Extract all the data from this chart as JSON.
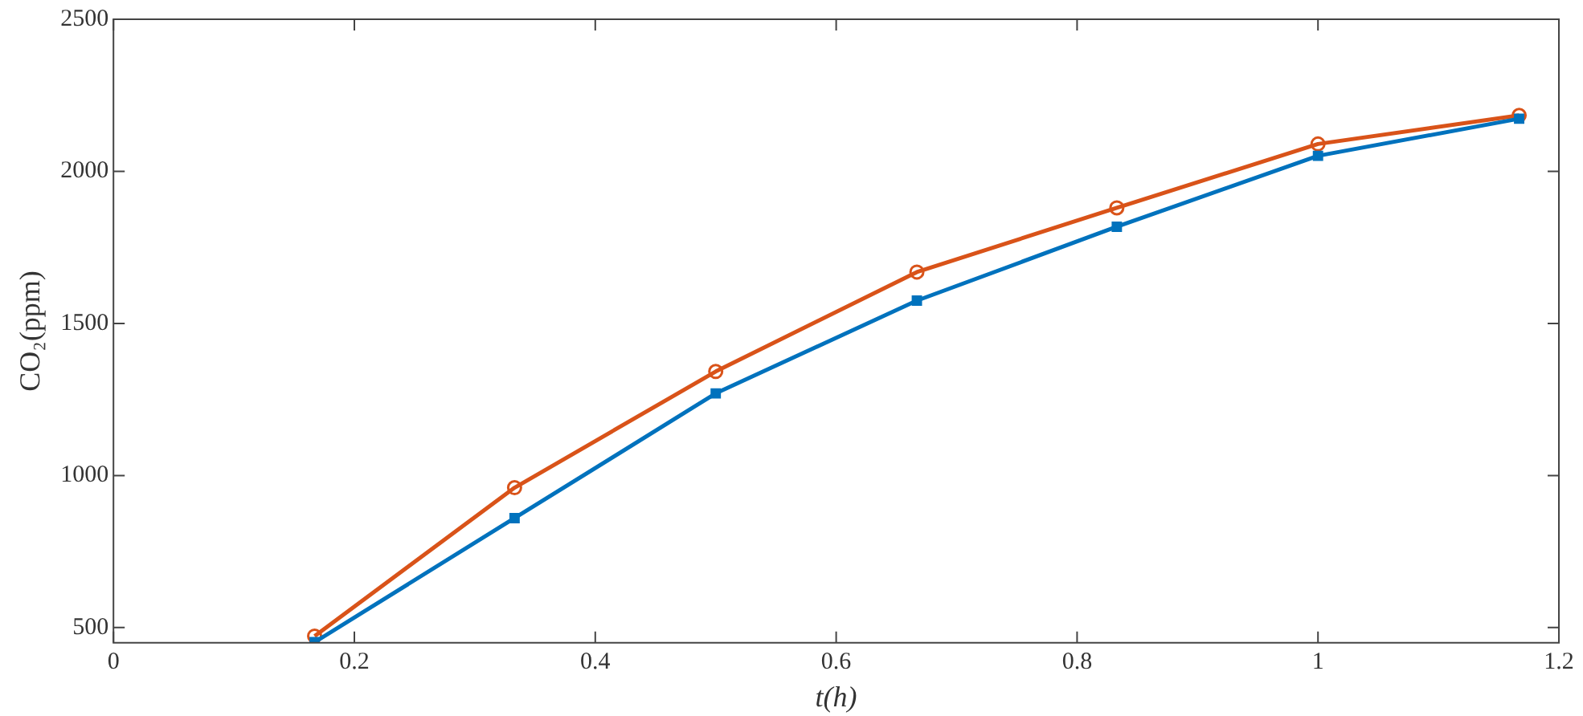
{
  "chart_data": {
    "type": "line",
    "xlabel": "t(h)",
    "ylabel": "CO₂(ppm)",
    "x": [
      0.167,
      0.333,
      0.5,
      0.667,
      0.833,
      1,
      1.167
    ],
    "series": [
      {
        "color": "#0072bd",
        "marker": "square",
        "values": [
          452,
          860,
          1270,
          1575,
          1818,
          2051,
          2173
        ]
      },
      {
        "color": "#d95319",
        "marker": "circle",
        "values": [
          472,
          960,
          1342,
          1669,
          1880,
          2090,
          2184
        ]
      }
    ],
    "xlim": [
      0,
      1.2
    ],
    "xticks": [
      0,
      0.2,
      0.4,
      0.6,
      0.8,
      1,
      1.2
    ],
    "ylim": [
      450,
      2500
    ],
    "yticks": [
      500,
      1000,
      1500,
      2000,
      2500
    ],
    "grid": false,
    "legend": false,
    "line_style": "solid"
  }
}
